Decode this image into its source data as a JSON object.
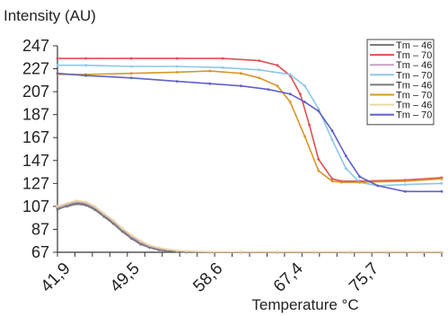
{
  "chart_data": {
    "type": "line",
    "ylabel": "Intensity (AU)",
    "xlabel": "Temperature °C",
    "x_ticks": [
      "41,9",
      "49,5",
      "58,6",
      "67,4",
      "75,7"
    ],
    "x_tick_values": [
      41.9,
      49.5,
      58.6,
      67.4,
      75.7
    ],
    "y_ticks": [
      247,
      227,
      207,
      187,
      167,
      147,
      127,
      107,
      87,
      67
    ],
    "xlim": [
      41.9,
      84
    ],
    "ylim": [
      67,
      247
    ],
    "grid": false,
    "legend_position": "top-right",
    "series": [
      {
        "name": "Tm – 46",
        "color": "#7a7a7a",
        "x": [
          41.9,
          43,
          44,
          45,
          46,
          47,
          48,
          49,
          50,
          51,
          52,
          53,
          54,
          55,
          56,
          58.6,
          62,
          66,
          70,
          74,
          78,
          82,
          84
        ],
        "y": [
          104,
          108,
          110,
          109,
          105,
          99,
          93,
          86,
          80,
          75,
          72,
          70,
          69,
          68,
          67.5,
          67,
          67,
          67,
          67,
          67,
          67,
          67,
          67
        ]
      },
      {
        "name": "Tm – 70",
        "color": "#e05050",
        "x": [
          41.9,
          45,
          50,
          55,
          60,
          64,
          66,
          67.4,
          68.5,
          69.5,
          70.5,
          72,
          73,
          75,
          80,
          84
        ],
        "y": [
          236,
          236,
          236,
          236,
          236,
          234,
          230,
          221,
          205,
          178,
          148,
          131,
          129,
          129,
          130,
          132
        ]
      },
      {
        "name": "Tm – 46",
        "color": "#c8a0c8",
        "x": [
          41.9,
          43,
          44,
          45,
          46,
          47,
          48,
          49,
          50,
          51,
          52,
          53,
          54,
          55,
          56,
          58.6,
          62,
          66,
          70,
          74,
          78,
          82,
          84
        ],
        "y": [
          106,
          109,
          111,
          110,
          106,
          100,
          94,
          87,
          81,
          76,
          72,
          70,
          69,
          68,
          67.5,
          67,
          67,
          67,
          67,
          67,
          67,
          67,
          67
        ]
      },
      {
        "name": "Tm – 70",
        "color": "#8cc8e6",
        "x": [
          41.9,
          45,
          50,
          55,
          60,
          64,
          67.4,
          69,
          70.5,
          72,
          73.5,
          75,
          77,
          80,
          84
        ],
        "y": [
          230,
          230,
          229,
          229,
          228,
          226,
          222,
          212,
          192,
          165,
          140,
          128,
          125,
          126,
          127
        ]
      },
      {
        "name": "Tm – 46",
        "color": "#7a7a7a",
        "x": [
          41.9,
          43,
          44,
          45,
          46,
          47,
          48,
          49,
          50,
          51,
          52,
          53,
          54,
          55,
          56,
          58.6,
          62,
          66,
          70,
          74,
          78,
          82,
          84
        ],
        "y": [
          105,
          107,
          109,
          108,
          104,
          98,
          92,
          85,
          79,
          74,
          71,
          69,
          68,
          67.5,
          67,
          67,
          67,
          67,
          67,
          67,
          67,
          67,
          67
        ]
      },
      {
        "name": "Tm – 70",
        "color": "#d8962c",
        "x": [
          41.9,
          45,
          50,
          55,
          58.6,
          62,
          64,
          66,
          67.4,
          69,
          70.5,
          72,
          73,
          75,
          80,
          84
        ],
        "y": [
          222,
          222,
          223,
          224,
          225,
          223,
          219,
          212,
          198,
          168,
          138,
          129,
          128,
          128,
          129,
          131
        ]
      },
      {
        "name": "Tm – 46",
        "color": "#ead8a8",
        "x": [
          41.9,
          43,
          44,
          45,
          46,
          47,
          48,
          49,
          50,
          51,
          52,
          53,
          54,
          55,
          56,
          58.6,
          62,
          66,
          70,
          74,
          78,
          82,
          84
        ],
        "y": [
          107,
          110,
          112,
          111,
          107,
          101,
          95,
          88,
          82,
          77,
          73,
          71,
          69.5,
          68.5,
          68,
          67.5,
          67.5,
          67.5,
          67.5,
          67.5,
          67.5,
          67.5,
          67.5
        ]
      },
      {
        "name": "Tm – 70",
        "color": "#6060c8",
        "x": [
          41.9,
          45,
          50,
          55,
          58.6,
          62,
          65,
          67.4,
          69,
          70.5,
          72,
          73.5,
          75,
          77,
          80,
          84
        ],
        "y": [
          223,
          221,
          219,
          216,
          214,
          212,
          209,
          205,
          198,
          190,
          173,
          151,
          133,
          125,
          120,
          120
        ]
      }
    ]
  }
}
